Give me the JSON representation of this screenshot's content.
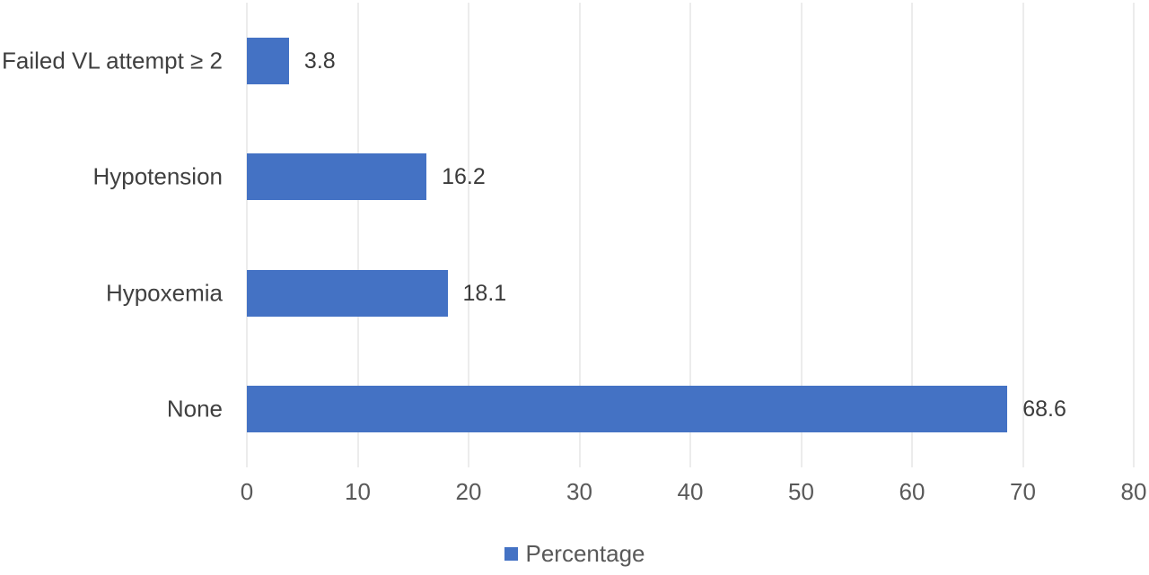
{
  "chart_data": {
    "type": "bar",
    "orientation": "horizontal",
    "categories": [
      "Failed VL attempt ≥ 2",
      "Hypotension",
      "Hypoxemia",
      "None"
    ],
    "values": [
      3.8,
      16.2,
      18.1,
      68.6
    ],
    "value_labels": [
      "3.8",
      "16.2",
      "18.1",
      "68.6"
    ],
    "series_name": "Percentage",
    "xlim": [
      0,
      80
    ],
    "xticks": [
      0,
      10,
      20,
      30,
      40,
      50,
      60,
      70,
      80
    ],
    "xtick_labels": [
      "0",
      "10",
      "20",
      "30",
      "40",
      "50",
      "60",
      "70",
      "80"
    ],
    "grid": "vertical",
    "title": "",
    "xlabel": "",
    "ylabel": "",
    "legend": {
      "label": "Percentage",
      "position": "bottom"
    },
    "colors": {
      "bar": "#4472C4",
      "gridline": "#D9D9D9",
      "category_label": "#404040",
      "value_label": "#3b3b3b",
      "tick_label": "#595959",
      "legend_label": "#595959",
      "background": "#ffffff"
    }
  }
}
